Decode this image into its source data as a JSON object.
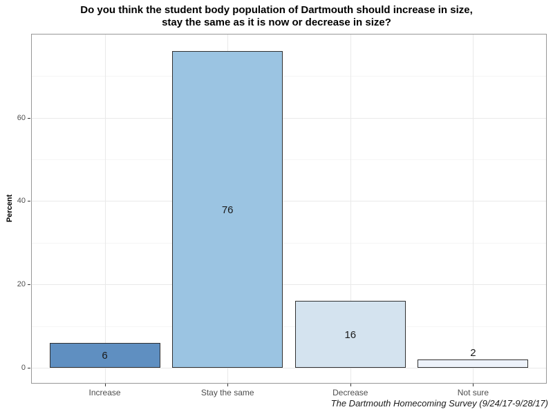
{
  "chart_data": {
    "type": "bar",
    "title": "Do you think the student body population of Dartmouth should increase in size, stay the same as it is now or decrease in size?",
    "title_lines": [
      "Do you think the student body population of Dartmouth should increase in size,",
      "stay the same as it is now or decrease in size?"
    ],
    "categories": [
      "Increase",
      "Stay the same",
      "Decrease",
      "Not sure"
    ],
    "values": [
      6,
      76,
      16,
      2
    ],
    "xlabel": "",
    "ylabel": "Percent",
    "y_ticks": [
      0,
      20,
      40,
      60
    ],
    "y_minor_ticks": [
      10,
      30,
      50,
      70
    ],
    "ylim": [
      0,
      80
    ],
    "grid": "major and minor horizontal, major vertical",
    "legend": "none",
    "caption": "The Dartmouth Homecoming Survey (9/24/17-9/28/17)",
    "colors": {
      "bar_fills": [
        "#5f8fc1",
        "#9bc4e2",
        "#d4e3ef",
        "#edf2fa"
      ],
      "bar_border": "#2f2f2f",
      "panel_border": "#969696",
      "grid_major": "#e9e9e9",
      "grid_minor": "#f5f5f5",
      "axis_text": "#4d4d4d",
      "value_label": "#1a1a1a",
      "title_text": "#000000"
    }
  }
}
